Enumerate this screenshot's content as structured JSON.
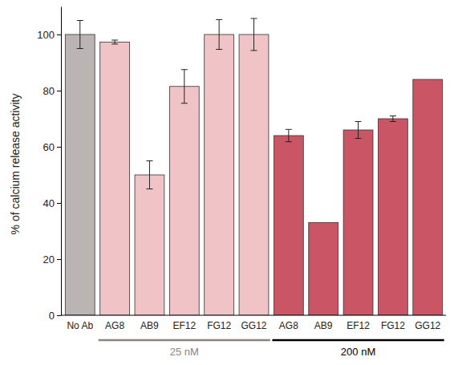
{
  "chart_data": {
    "type": "bar",
    "ylabel": "% of calcium release activity",
    "categories": [
      "No Ab",
      "AG8",
      "AB9",
      "EF12",
      "FG12",
      "GG12",
      "AG8",
      "AB9",
      "EF12",
      "FG12",
      "GG12"
    ],
    "values": [
      100,
      97.3,
      50,
      81.5,
      100,
      100,
      64,
      33,
      66,
      70,
      84
    ],
    "errors": [
      5,
      0.7,
      5,
      6,
      5.3,
      5.7,
      2.2,
      null,
      3,
      1,
      null
    ],
    "colors": [
      "#bab5b3",
      "#f0c4c6",
      "#f0c4c6",
      "#f0c4c6",
      "#f0c4c6",
      "#f0c4c6",
      "#c95565",
      "#c95565",
      "#c95565",
      "#c95565",
      "#c95565"
    ],
    "groups": [
      {
        "label": "25 nM",
        "from": 1,
        "to": 5,
        "color": "#8c8580"
      },
      {
        "label": "200 nM",
        "from": 6,
        "to": 10,
        "color": "#000000"
      }
    ],
    "ylim": [
      0,
      110
    ],
    "yticks": [
      0,
      20,
      40,
      60,
      80,
      100
    ],
    "grid": false
  }
}
